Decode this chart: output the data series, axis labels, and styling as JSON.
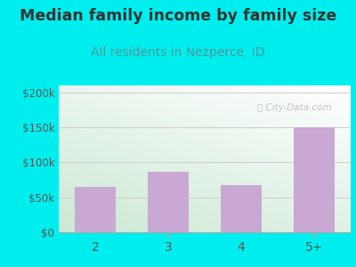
{
  "categories": [
    "2",
    "3",
    "4",
    "5+"
  ],
  "values": [
    65000,
    87000,
    68000,
    150000
  ],
  "bar_color": "#c9a8d4",
  "title": "Median family income by family size",
  "subtitle": "All residents in Nezperce, ID",
  "title_fontsize": 12.5,
  "subtitle_fontsize": 10,
  "title_color": "#333333",
  "subtitle_color": "#4a9a9a",
  "ylabel_ticks": [
    0,
    50000,
    100000,
    150000,
    200000
  ],
  "ylabel_labels": [
    "$0",
    "$50k",
    "$100k",
    "$150k",
    "$200k"
  ],
  "ylim": [
    0,
    210000
  ],
  "background_color": "#00eeee",
  "grid_color": "#cccccc",
  "tick_color": "#555555",
  "bar_width": 0.55,
  "watermark": "City-Data.com"
}
